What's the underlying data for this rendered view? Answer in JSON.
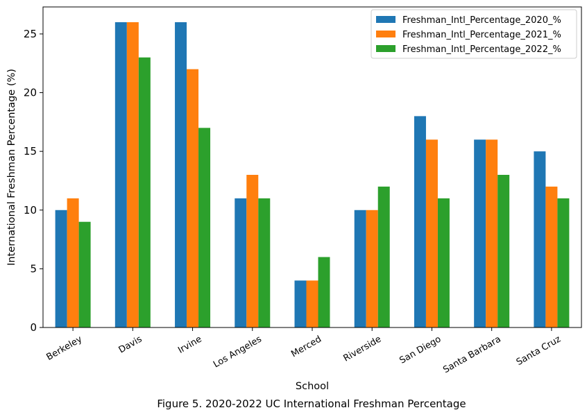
{
  "chart_data": {
    "type": "bar",
    "caption": "Figure 5. 2020-2022 UC International Freshman Percentage",
    "xlabel": "School",
    "ylabel": "International Freshman Percentage (%)",
    "ylim": [
      0,
      27.3
    ],
    "yticks": [
      0,
      5,
      10,
      15,
      20,
      25
    ],
    "legend_position": "top-right",
    "categories": [
      "Berkeley",
      "Davis",
      "Irvine",
      "Los Angeles",
      "Merced",
      "Riverside",
      "San Diego",
      "Santa Barbara",
      "Santa Cruz"
    ],
    "series": [
      {
        "name": "Freshman_Intl_Percentage_2020_%",
        "color": "#1f77b4",
        "values": [
          10,
          26,
          26,
          11,
          4,
          10,
          18,
          16,
          15
        ]
      },
      {
        "name": "Freshman_Intl_Percentage_2021_%",
        "color": "#ff7f0e",
        "values": [
          11,
          26,
          22,
          13,
          4,
          10,
          16,
          16,
          12
        ]
      },
      {
        "name": "Freshman_Intl_Percentage_2022_%",
        "color": "#2ca02c",
        "values": [
          9,
          23,
          17,
          11,
          6,
          12,
          11,
          13,
          11
        ]
      }
    ]
  }
}
